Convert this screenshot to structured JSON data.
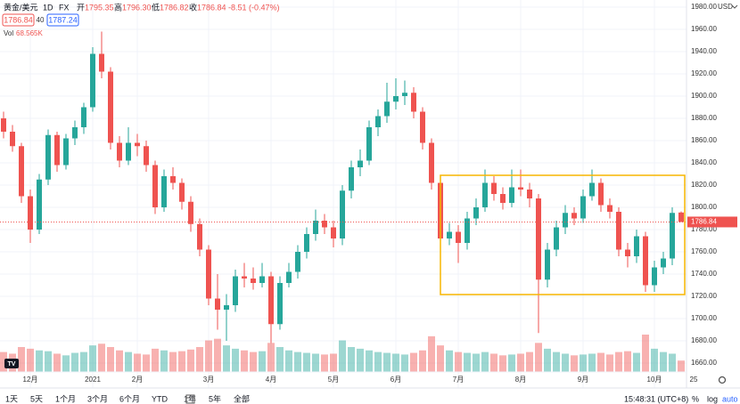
{
  "chart_data": {
    "type": "candlestick",
    "symbol": "黄金/美元",
    "interval": "1D",
    "source": "FX",
    "ohlc_captions": [
      "开",
      "高",
      "低",
      "收"
    ],
    "ohlc_labels": [
      "1795.35",
      "1796.30",
      "1786.82",
      "1786.84"
    ],
    "change_label": "-8.51 (-0.47%)",
    "bid_label": "1786.84",
    "spread_label": "40",
    "ask_label": "1787.24",
    "volume_title": "Vol",
    "volume_label": "68.565K",
    "currency": "USD",
    "last_price": {
      "value": 1786.84,
      "label": "1786.84"
    },
    "up_color": "#26a69a",
    "down_color": "#ef5350",
    "grid": true,
    "ylim": [
      1637.6,
      1986.4
    ],
    "yticks": [
      {
        "value": 1660,
        "label": "1660.00"
      },
      {
        "value": 1680,
        "label": "1680.00"
      },
      {
        "value": 1700,
        "label": "1700.00"
      },
      {
        "value": 1720,
        "label": "1720.00"
      },
      {
        "value": 1740,
        "label": "1740.00"
      },
      {
        "value": 1760,
        "label": "1760.00"
      },
      {
        "value": 1780,
        "label": "1780.00"
      },
      {
        "value": 1800,
        "label": "1800.00"
      },
      {
        "value": 1820,
        "label": "1820.00"
      },
      {
        "value": 1840,
        "label": "1840.00"
      },
      {
        "value": 1860,
        "label": "1860.00"
      },
      {
        "value": 1880,
        "label": "1880.00"
      },
      {
        "value": 1900,
        "label": "1900.00"
      },
      {
        "value": 1920,
        "label": "1920.00"
      },
      {
        "value": 1940,
        "label": "1940.00"
      },
      {
        "value": 1960,
        "label": "1960.00"
      },
      {
        "value": 1980,
        "label": "1980.00"
      }
    ],
    "categories": [
      null,
      null,
      null,
      "12月",
      null,
      null,
      null,
      null,
      null,
      null,
      "2021",
      null,
      null,
      null,
      null,
      "2月",
      null,
      null,
      null,
      null,
      null,
      null,
      null,
      "3月",
      null,
      null,
      null,
      null,
      null,
      null,
      "4月",
      null,
      null,
      null,
      null,
      null,
      null,
      "5月",
      null,
      null,
      null,
      null,
      null,
      null,
      "6月",
      null,
      null,
      null,
      null,
      null,
      null,
      "7月",
      null,
      null,
      null,
      null,
      null,
      null,
      "8月",
      null,
      null,
      null,
      null,
      null,
      null,
      "9月",
      null,
      null,
      null,
      null,
      null,
      null,
      null,
      "10月",
      null,
      null,
      null
    ],
    "future_label": "25",
    "candles": [
      [
        1880,
        1886,
        1862,
        1868
      ],
      [
        1868,
        1874,
        1850,
        1855
      ],
      [
        1855,
        1858,
        1804,
        1810
      ],
      [
        1810,
        1816,
        1768,
        1780
      ],
      [
        1780,
        1830,
        1776,
        1825
      ],
      [
        1825,
        1870,
        1820,
        1865
      ],
      [
        1865,
        1868,
        1832,
        1838
      ],
      [
        1838,
        1866,
        1834,
        1862
      ],
      [
        1862,
        1878,
        1856,
        1872
      ],
      [
        1872,
        1894,
        1866,
        1890
      ],
      [
        1890,
        1944,
        1886,
        1938
      ],
      [
        1938,
        1958,
        1916,
        1922
      ],
      [
        1922,
        1926,
        1852,
        1858
      ],
      [
        1858,
        1864,
        1836,
        1842
      ],
      [
        1842,
        1872,
        1838,
        1858
      ],
      [
        1858,
        1866,
        1846,
        1855
      ],
      [
        1855,
        1860,
        1832,
        1838
      ],
      [
        1838,
        1842,
        1794,
        1800
      ],
      [
        1800,
        1834,
        1796,
        1828
      ],
      [
        1828,
        1836,
        1816,
        1822
      ],
      [
        1822,
        1826,
        1798,
        1805
      ],
      [
        1805,
        1810,
        1778,
        1785
      ],
      [
        1785,
        1790,
        1756,
        1762
      ],
      [
        1762,
        1766,
        1712,
        1718
      ],
      [
        1718,
        1740,
        1690,
        1708
      ],
      [
        1708,
        1722,
        1680,
        1712
      ],
      [
        1712,
        1744,
        1706,
        1738
      ],
      [
        1738,
        1750,
        1728,
        1736
      ],
      [
        1736,
        1746,
        1726,
        1732
      ],
      [
        1732,
        1750,
        1728,
        1738
      ],
      [
        1738,
        1742,
        1678,
        1695
      ],
      [
        1695,
        1738,
        1690,
        1732
      ],
      [
        1732,
        1750,
        1728,
        1742
      ],
      [
        1742,
        1766,
        1736,
        1760
      ],
      [
        1760,
        1782,
        1754,
        1776
      ],
      [
        1776,
        1798,
        1770,
        1788
      ],
      [
        1788,
        1794,
        1776,
        1782
      ],
      [
        1782,
        1788,
        1764,
        1772
      ],
      [
        1772,
        1820,
        1766,
        1815
      ],
      [
        1815,
        1842,
        1808,
        1836
      ],
      [
        1836,
        1852,
        1828,
        1842
      ],
      [
        1842,
        1878,
        1838,
        1872
      ],
      [
        1872,
        1888,
        1864,
        1882
      ],
      [
        1882,
        1912,
        1876,
        1895
      ],
      [
        1895,
        1916,
        1888,
        1900
      ],
      [
        1900,
        1914,
        1892,
        1903
      ],
      [
        1903,
        1908,
        1880,
        1886
      ],
      [
        1886,
        1890,
        1852,
        1858
      ],
      [
        1858,
        1862,
        1816,
        1822
      ],
      [
        1822,
        1826,
        1762,
        1772
      ],
      [
        1772,
        1786,
        1766,
        1778
      ],
      [
        1778,
        1784,
        1750,
        1768
      ],
      [
        1768,
        1796,
        1762,
        1790
      ],
      [
        1790,
        1808,
        1784,
        1800
      ],
      [
        1800,
        1834,
        1796,
        1822
      ],
      [
        1822,
        1828,
        1806,
        1812
      ],
      [
        1812,
        1818,
        1798,
        1804
      ],
      [
        1804,
        1834,
        1800,
        1818
      ],
      [
        1818,
        1834,
        1810,
        1816
      ],
      [
        1816,
        1822,
        1800,
        1808
      ],
      [
        1808,
        1812,
        1687,
        1735
      ],
      [
        1735,
        1768,
        1728,
        1762
      ],
      [
        1762,
        1788,
        1756,
        1782
      ],
      [
        1782,
        1802,
        1776,
        1795
      ],
      [
        1795,
        1800,
        1784,
        1790
      ],
      [
        1790,
        1816,
        1786,
        1810
      ],
      [
        1810,
        1834,
        1806,
        1822
      ],
      [
        1822,
        1826,
        1796,
        1802
      ],
      [
        1802,
        1808,
        1790,
        1796
      ],
      [
        1796,
        1800,
        1756,
        1762
      ],
      [
        1762,
        1768,
        1746,
        1756
      ],
      [
        1756,
        1780,
        1750,
        1774
      ],
      [
        1774,
        1778,
        1724,
        1730
      ],
      [
        1730,
        1752,
        1724,
        1746
      ],
      [
        1746,
        1760,
        1740,
        1754
      ],
      [
        1754,
        1800,
        1748,
        1795
      ],
      [
        1795.35,
        1796.3,
        1786.82,
        1786.84
      ]
    ],
    "volumes": [
      120,
      110,
      150,
      140,
      130,
      125,
      110,
      100,
      115,
      120,
      160,
      170,
      150,
      130,
      120,
      110,
      105,
      140,
      130,
      120,
      125,
      135,
      150,
      190,
      200,
      160,
      140,
      130,
      120,
      125,
      175,
      150,
      130,
      120,
      115,
      110,
      105,
      110,
      190,
      150,
      140,
      130,
      120,
      115,
      110,
      105,
      115,
      130,
      215,
      160,
      130,
      120,
      115,
      110,
      120,
      110,
      100,
      105,
      110,
      120,
      175,
      140,
      120,
      110,
      100,
      105,
      110,
      115,
      105,
      120,
      125,
      115,
      225,
      140,
      120,
      110,
      68.565
    ],
    "ranges": [
      "1天",
      "5天",
      "1个月",
      "3个月",
      "6个月",
      "YTD",
      "1年",
      "5年",
      "全部"
    ],
    "clock": "15:48:31 (UTC+8)",
    "scale_options": [
      "%",
      "log",
      "auto"
    ]
  }
}
